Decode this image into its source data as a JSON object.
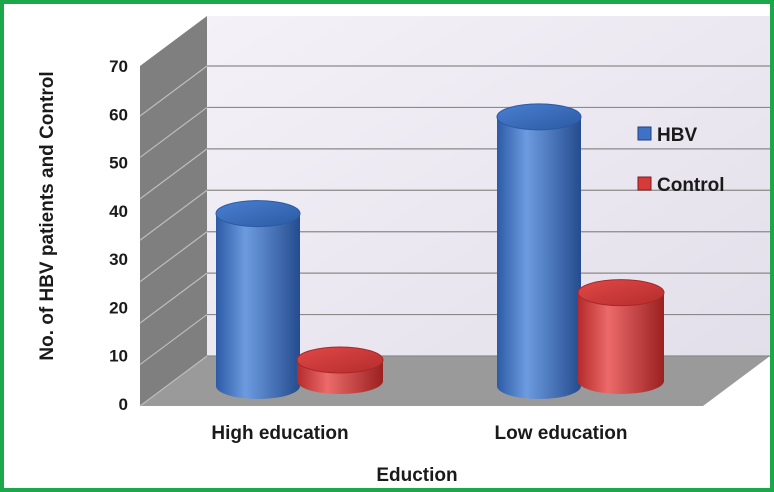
{
  "chart_data": {
    "type": "bar",
    "style": "3d-cylinder",
    "title": "",
    "xlabel": "Eduction",
    "ylabel": "No. of HBV patients and Control",
    "categories": [
      "High education",
      "Low education"
    ],
    "series": [
      {
        "name": "HBV",
        "values": [
          41,
          64
        ],
        "color": "#3f72c4"
      },
      {
        "name": "Control",
        "values": [
          5,
          21
        ],
        "color": "#d63b3b"
      }
    ],
    "ylim": [
      0,
      70
    ],
    "yticks": [
      "0",
      "10",
      "20",
      "30",
      "40",
      "50",
      "60",
      "70"
    ],
    "grid": true,
    "legend": "right"
  },
  "colors": {
    "border": "#1aa84a",
    "wall": "#eeeaf4",
    "floor": "#9a9a9a",
    "side_wall": "#7f7f7f"
  }
}
